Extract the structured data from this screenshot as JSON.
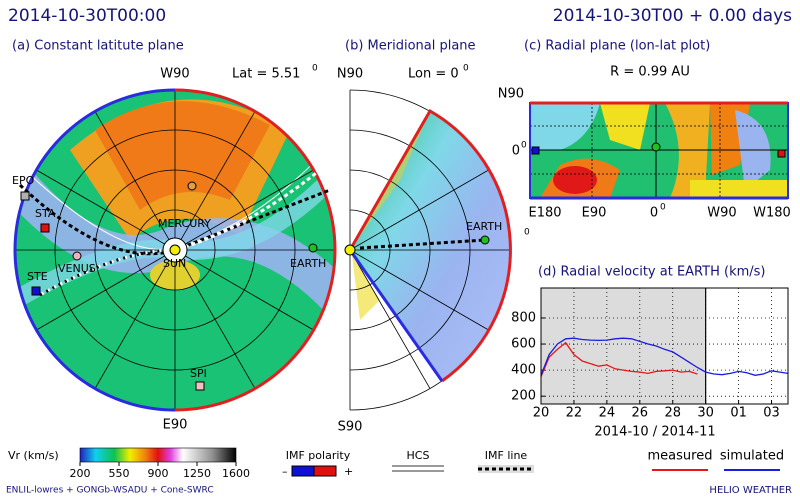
{
  "header": {
    "left": "2014-10-30T00:00",
    "right": "2014-10-30T00 + 0.00 days"
  },
  "panel_a": {
    "title": "(a) Constant latitute plane",
    "top": "W90",
    "bottom": "E90",
    "lat": "Lat = 5.51",
    "lat_unit": "0",
    "bodies": {
      "earth": "EARTH",
      "mercury": "MERCURY",
      "venus": "VENUS",
      "sun": "SUN",
      "sta": "STA",
      "ste": "STE",
      "epo": "EPO",
      "spi": "SPI"
    }
  },
  "panel_b": {
    "title": "(b) Meridional plane",
    "top": "N90",
    "bottom": "S90",
    "lon": "Lon = 0",
    "lon_unit": "0",
    "earth": "EARTH"
  },
  "panel_c": {
    "title": "(c) Radial plane (lon-lat plot)",
    "radius": "R = 0.99 AU",
    "north": "N90",
    "equator": "0",
    "equator_unit": "0",
    "lon_labels": [
      "E180",
      "E90",
      "0",
      "W90",
      "W180"
    ],
    "zero_unit": "0"
  },
  "colorbar": {
    "label": "Vr (km/s)",
    "lim": [
      200,
      1600
    ],
    "ticks": [
      200,
      550,
      900,
      1250,
      1600
    ]
  },
  "legend": {
    "polarity": "IMF polarity",
    "minus": "–",
    "plus": "+",
    "hcs": "HCS",
    "imf_line": "IMF line"
  },
  "footer": {
    "left": "ENLIL-lowres + GONGb-WSADU + Cone-SWRC",
    "right": "HELIO WEATHER"
  },
  "chart_data": {
    "type": "line",
    "title": "(d) Radial velocity at EARTH (km/s)",
    "x_label": "2014-10 / 2014-11",
    "x": [
      20,
      20.5,
      21,
      21.5,
      22,
      22.5,
      23,
      23.5,
      24,
      24.5,
      25,
      25.5,
      26,
      26.5,
      27,
      27.5,
      28,
      28.5,
      29,
      29.5,
      30,
      30.5,
      31,
      31.5,
      32,
      32.5,
      33,
      33.5,
      34,
      34.5,
      35
    ],
    "series": [
      {
        "name": "measured",
        "color": "#e8161b",
        "values": [
          350,
          500,
          560,
          610,
          520,
          470,
          450,
          430,
          440,
          410,
          400,
          390,
          385,
          375,
          390,
          395,
          400,
          385,
          390,
          370,
          null,
          null,
          null,
          null,
          null,
          null,
          null,
          null,
          null,
          null,
          null
        ]
      },
      {
        "name": "simulated",
        "color": "#1c1ce0",
        "values": [
          360,
          520,
          600,
          640,
          645,
          635,
          630,
          628,
          630,
          640,
          645,
          640,
          620,
          600,
          585,
          560,
          540,
          500,
          460,
          420,
          385,
          370,
          365,
          375,
          390,
          380,
          360,
          370,
          395,
          385,
          375
        ]
      }
    ],
    "xlim": [
      20,
      35
    ],
    "ylim": [
      140,
      1030
    ],
    "xticks": [
      20,
      22,
      24,
      26,
      28,
      30,
      {
        "value": 32,
        "label": "01"
      },
      {
        "value": 34,
        "label": "03"
      }
    ],
    "yticks": [
      200,
      400,
      600,
      800
    ],
    "grid": true,
    "shaded_xrange": [
      20,
      30
    ]
  }
}
